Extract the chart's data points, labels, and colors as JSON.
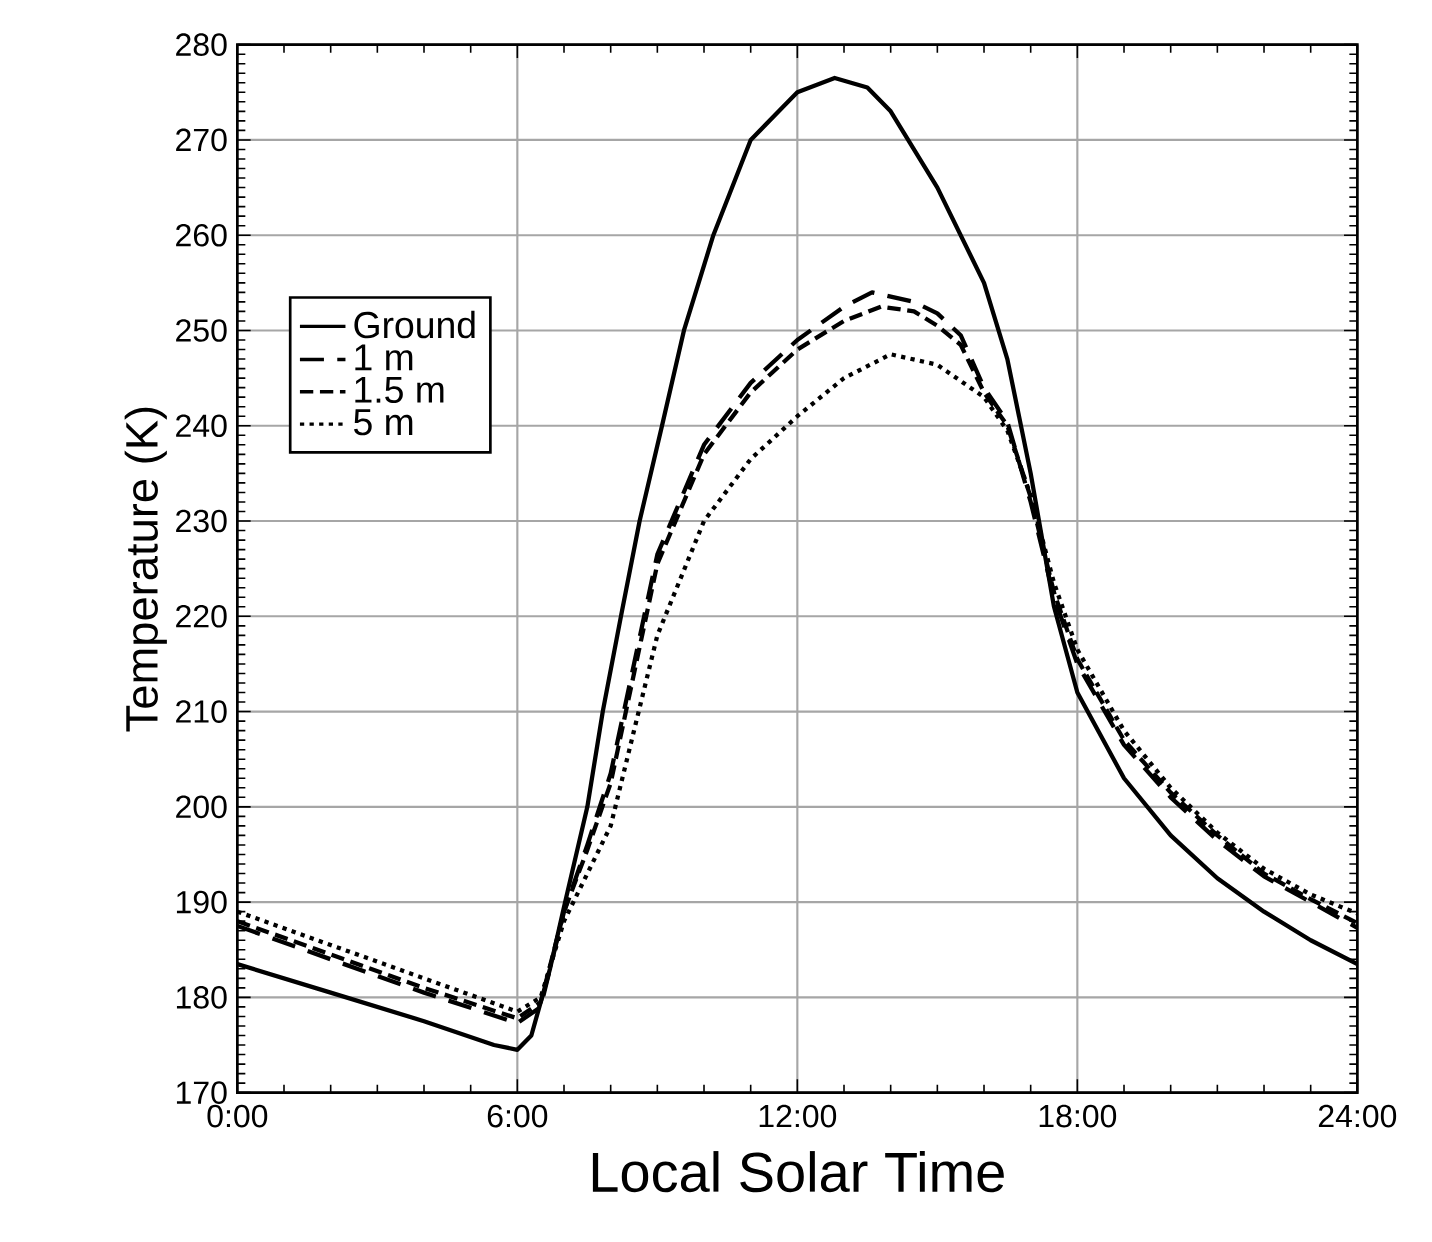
{
  "chart_data": {
    "type": "line",
    "xlabel": "Local Solar Time",
    "ylabel": "Temperature (K)",
    "xlim": [
      0,
      24
    ],
    "ylim": [
      170,
      280
    ],
    "xticks": [
      {
        "value": 0,
        "label": "0:00"
      },
      {
        "value": 6,
        "label": "6:00"
      },
      {
        "value": 12,
        "label": "12:00"
      },
      {
        "value": 18,
        "label": "18:00"
      },
      {
        "value": 24,
        "label": "24:00"
      }
    ],
    "yticks": [
      170,
      180,
      190,
      200,
      210,
      220,
      230,
      240,
      250,
      260,
      270,
      280
    ],
    "grid": true,
    "legend": "top left",
    "marker": "none",
    "series": [
      {
        "name": "Ground",
        "color": "#000000",
        "line_style": "solid",
        "x": [
          0,
          2,
          4,
          5.5,
          6,
          6.3,
          6.7,
          7,
          7.5,
          7.83,
          8.22,
          8.62,
          9.1,
          9.57,
          10.2,
          11,
          11.7,
          12,
          12.8,
          13.5,
          14,
          15,
          16,
          16.5,
          17,
          17.5,
          18,
          19,
          20,
          21,
          22,
          23,
          24
        ],
        "values": [
          183.5,
          180.5,
          177.5,
          175,
          174.5,
          176,
          183,
          189.5,
          200,
          210,
          220,
          230,
          240,
          250,
          260,
          270,
          273.5,
          275,
          276.5,
          275.5,
          273,
          265,
          255,
          247,
          235,
          221,
          212,
          203,
          197,
          192.5,
          189,
          186,
          183.5
        ]
      },
      {
        "name": "1 m",
        "color": "#000000",
        "line_style": "dashed",
        "x": [
          0,
          2,
          4,
          6,
          6.5,
          7,
          7.5,
          8,
          8.5,
          9,
          10,
          11,
          12,
          13,
          13.6,
          14.5,
          15,
          15.5,
          16,
          16.5,
          17,
          17.5,
          18,
          19,
          20,
          21,
          22,
          23,
          24
        ],
        "values": [
          187.5,
          184,
          180.5,
          177.3,
          179,
          189,
          196,
          203.5,
          215,
          226.5,
          238,
          244.5,
          249,
          252.5,
          254,
          253,
          251.8,
          249.5,
          244,
          240.4,
          232,
          222,
          215,
          206.5,
          201,
          196.5,
          192.7,
          190,
          187.3
        ]
      },
      {
        "name": "1.5 m",
        "color": "#000000",
        "line_style": "dashed",
        "x": [
          0,
          2,
          4,
          6,
          6.5,
          7,
          7.5,
          8,
          8.5,
          9,
          10,
          11,
          12,
          13,
          13.8,
          14.5,
          15,
          15.5,
          16,
          16.5,
          17,
          17.5,
          18,
          19,
          20,
          21,
          22,
          23,
          24
        ],
        "values": [
          188,
          184.5,
          181,
          177.8,
          179.5,
          189,
          195.5,
          202.5,
          214,
          225.5,
          237,
          243.5,
          248,
          251,
          252.5,
          252,
          250.5,
          248.5,
          243.5,
          240,
          232.5,
          222.5,
          215.5,
          207,
          201.5,
          197,
          193,
          190.3,
          187.8
        ]
      },
      {
        "name": "5 m",
        "color": "#000000",
        "line_style": "dotted",
        "x": [
          0,
          2,
          4,
          6,
          6.5,
          7,
          7.5,
          8,
          8.5,
          9,
          10,
          11,
          12,
          13,
          14,
          15,
          16,
          16.5,
          17,
          17.5,
          18,
          19,
          20,
          21,
          22,
          23,
          24
        ],
        "values": [
          189,
          185.5,
          182,
          178.5,
          180,
          188,
          193,
          198,
          208,
          218,
          230,
          236.5,
          241,
          245,
          247.5,
          246.4,
          243,
          239.5,
          232.7,
          223.5,
          216.5,
          208,
          202,
          197.3,
          193.5,
          190.8,
          188.8
        ]
      }
    ]
  }
}
